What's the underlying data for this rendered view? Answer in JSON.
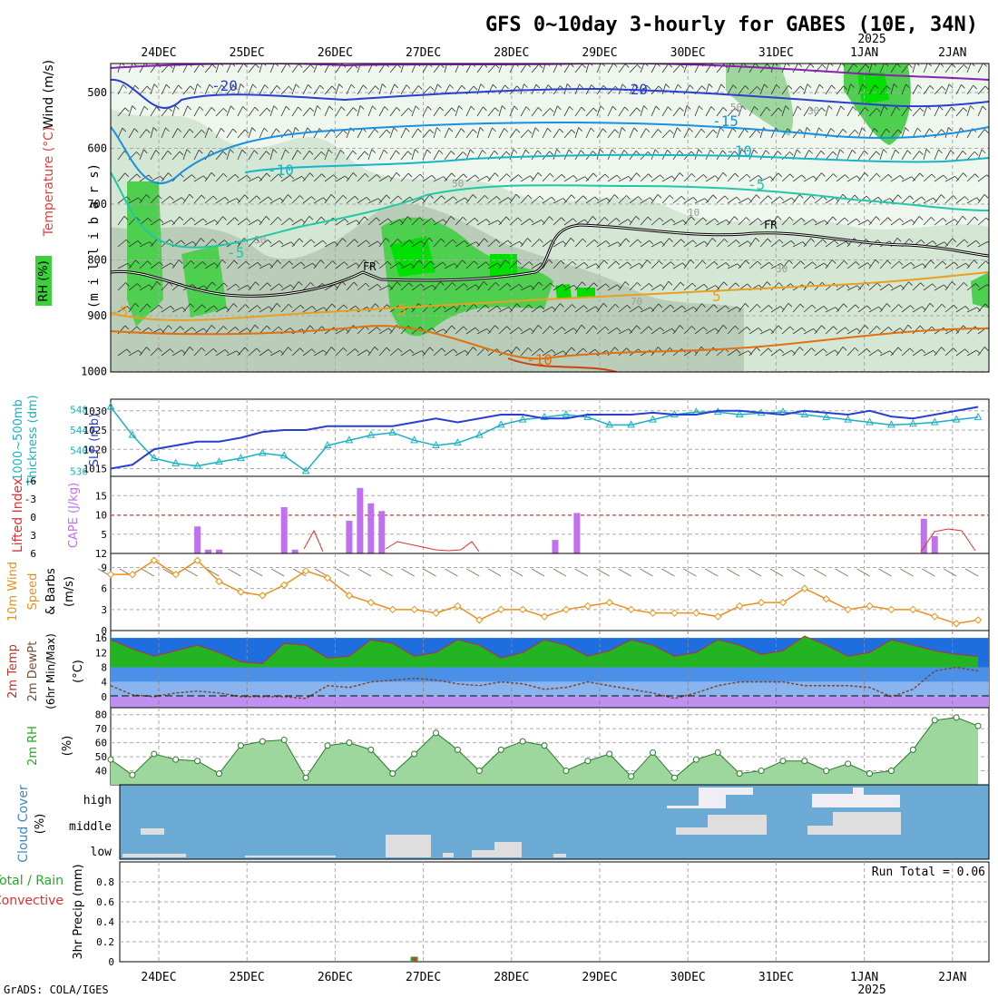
{
  "title": "GFS 0~10day 3-hourly for GABES (10E, 34N)",
  "year_label": "2025",
  "date_labels": [
    "24DEC",
    "25DEC",
    "26DEC",
    "27DEC",
    "28DEC",
    "29DEC",
    "30DEC",
    "31DEC",
    "1JAN",
    "2JAN"
  ],
  "credit": "GrADS: COLA/IGES",
  "panels": {
    "upper": {
      "y_label": "(m i l l i b a r s)",
      "legend_wind": "Wind (m/s)",
      "legend_temp": "Temperature (°C)",
      "legend_rh": "RH (%)",
      "pressure_ticks": [
        "500",
        "600",
        "700",
        "800",
        "900",
        "1000"
      ],
      "contour_labels": [
        "-20",
        "-20",
        "-15",
        "-10",
        "-10",
        "-5",
        "-5",
        "5",
        "5",
        "-5",
        "-10",
        "FR",
        "FR",
        "30",
        "30",
        "50",
        "10",
        "70",
        "30",
        "50"
      ]
    },
    "pressure": {
      "label_thk": "Thickness (dm)",
      "label_thk2": "1000~500mb",
      "label_slp": "SLP (mb)",
      "thk_ticks": [
        "548",
        "544",
        "540",
        "536"
      ],
      "slp_ticks": [
        "1030",
        "1025",
        "1020",
        "1015"
      ]
    },
    "cape": {
      "label_li": "Lifted Index",
      "label_cape": "CAPE (J/kg)",
      "li_ticks": [
        "-6",
        "-3",
        "0",
        "3",
        "6"
      ],
      "cape_ticks": [
        "15",
        "10",
        "5",
        "12"
      ]
    },
    "wind10": {
      "label1": "10m Wind",
      "label2": "Speed",
      "label3": "& Barbs",
      "label4": "(m/s)",
      "ticks": [
        "9",
        "6",
        "3",
        "0"
      ]
    },
    "temp2m": {
      "label1": "2m Temp",
      "label2": "2m DewPt",
      "label3": "(6hr Min/Max)",
      "label4": "(°C)",
      "ticks": [
        "16",
        "12",
        "8",
        "4",
        "0"
      ]
    },
    "rh2m": {
      "label1": "2m RH",
      "label2": "(%)",
      "ticks": [
        "80",
        "70",
        "60",
        "50",
        "40"
      ]
    },
    "cloud": {
      "label1": "Cloud Cover",
      "label2": "(%)",
      "ticks": [
        "high",
        "middle",
        "low"
      ]
    },
    "precip": {
      "label1": "Total / Rain",
      "label2": "Convective",
      "label3": "3hr Precip (mm)",
      "ticks": [
        "0.8",
        "0.6",
        "0.4",
        "0.2",
        "0"
      ],
      "run_total": "Run Total = 0.06"
    }
  },
  "colors": {
    "rh_green": "#3ccf3c",
    "temp_orange": "#e8901a",
    "thk_cyan": "#1ab0c0",
    "slp_blue": "#2a3fd0",
    "cape_purple": "#c070f0",
    "li_red": "#e03030",
    "cloud_bg": "#6aaad4",
    "grid": "#aaaaaa"
  },
  "chart_data": [
    {
      "type": "line",
      "name": "thickness",
      "x": [
        0,
        6,
        12,
        18,
        24,
        30,
        36,
        42,
        48,
        54,
        60,
        66,
        72,
        78,
        84,
        90,
        96,
        102,
        108,
        114,
        120,
        126,
        132,
        138,
        144,
        150,
        156,
        162,
        168,
        174,
        180,
        186,
        192,
        198,
        204,
        210,
        216,
        222,
        228,
        234,
        240
      ],
      "series": [
        {
          "name": "Thickness (dm)",
          "values": [
            548.5,
            543,
            538.5,
            537.5,
            537,
            537.8,
            538.5,
            539.5,
            539,
            536,
            541,
            542,
            543,
            543.5,
            542,
            541,
            541.5,
            543,
            545,
            546,
            546.5,
            547,
            546.5,
            545,
            545,
            546,
            547,
            547.5,
            547.5,
            547,
            547.3,
            547.5,
            547,
            546.5,
            546,
            545.5,
            545,
            545.2,
            545.5,
            546,
            546.5
          ]
        },
        {
          "name": "SLP (mb)",
          "values": [
            1015,
            1016,
            1020,
            1021,
            1022,
            1022,
            1023,
            1024.5,
            1025,
            1025,
            1026,
            1026,
            1026,
            1026,
            1027,
            1028,
            1027,
            1028,
            1029,
            1029,
            1028,
            1028,
            1029,
            1029,
            1029,
            1029.5,
            1029,
            1029,
            1030,
            1030,
            1029.5,
            1029,
            1030,
            1029.5,
            1029,
            1030,
            1028.5,
            1028,
            1029,
            1030,
            1031
          ]
        }
      ],
      "ylim_thk": [
        535,
        550
      ],
      "ylim_slp": [
        1013,
        1033
      ]
    },
    {
      "type": "bar",
      "name": "cape",
      "x": [
        24,
        27,
        30,
        48,
        51,
        66,
        69,
        72,
        75,
        123,
        129,
        225,
        228
      ],
      "values": [
        7,
        1,
        1,
        12,
        1,
        8.5,
        17,
        13,
        11,
        3.5,
        10.5,
        9,
        4.5
      ],
      "ylim": [
        0,
        20
      ]
    },
    {
      "type": "line",
      "name": "wind10",
      "x": [
        0,
        6,
        12,
        18,
        24,
        30,
        36,
        42,
        48,
        54,
        60,
        66,
        72,
        78,
        84,
        90,
        96,
        102,
        108,
        114,
        120,
        126,
        132,
        138,
        144,
        150,
        156,
        162,
        168,
        174,
        180,
        186,
        192,
        198,
        204,
        210,
        216,
        222,
        228,
        234,
        240
      ],
      "values": [
        8,
        8,
        10,
        8,
        10,
        7,
        5.5,
        5,
        6.5,
        8.5,
        7.5,
        5,
        4,
        3,
        3,
        2.5,
        3.5,
        1.5,
        3,
        3,
        2,
        3,
        3.5,
        4,
        3,
        2.5,
        2.5,
        2.5,
        2,
        3.5,
        4,
        4,
        6,
        4.5,
        3,
        3.5,
        3,
        3,
        2,
        1,
        1.5
      ],
      "ylim": [
        0,
        11
      ]
    },
    {
      "type": "area",
      "name": "temp2m",
      "x": [
        0,
        6,
        12,
        18,
        24,
        30,
        36,
        42,
        48,
        54,
        60,
        66,
        72,
        78,
        84,
        90,
        96,
        102,
        108,
        114,
        120,
        126,
        132,
        138,
        144,
        150,
        156,
        162,
        168,
        174,
        180,
        186,
        192,
        198,
        204,
        210,
        216,
        222,
        228,
        234,
        240
      ],
      "series": [
        {
          "name": "2m Temp",
          "values": [
            15.5,
            13,
            11,
            12.5,
            14,
            12,
            9.5,
            9,
            14.5,
            14,
            10.5,
            11,
            15.5,
            14.5,
            11,
            12,
            15.5,
            14,
            10.5,
            12,
            15.5,
            14,
            11,
            12.5,
            15.5,
            14,
            11,
            12,
            15.5,
            14,
            11.5,
            12.5,
            16.5,
            14,
            11,
            12,
            15.5,
            14,
            12.5,
            11.5,
            11
          ]
        },
        {
          "name": "2m DewPt",
          "values": [
            3,
            0.5,
            0,
            1,
            1.5,
            1,
            0,
            0,
            0,
            -0.5,
            3,
            2.5,
            4,
            4.5,
            5,
            4.5,
            3.5,
            3,
            4,
            3.5,
            2,
            2.5,
            4,
            3,
            2,
            1,
            -0.5,
            1,
            3,
            4,
            4,
            4,
            3,
            3,
            3,
            2.5,
            0,
            2,
            7,
            8,
            7
          ]
        }
      ],
      "ylim": [
        -3,
        18
      ]
    },
    {
      "type": "area",
      "name": "rh2m",
      "x": [
        0,
        6,
        12,
        18,
        24,
        30,
        36,
        42,
        48,
        54,
        60,
        66,
        72,
        78,
        84,
        90,
        96,
        102,
        108,
        114,
        120,
        126,
        132,
        138,
        144,
        150,
        156,
        162,
        168,
        174,
        180,
        186,
        192,
        198,
        204,
        210,
        216,
        222,
        228,
        234,
        240
      ],
      "values": [
        48,
        37,
        52,
        48,
        47,
        38,
        58,
        61,
        62,
        35,
        58,
        60,
        55,
        38,
        52,
        67,
        55,
        40,
        55,
        61,
        58,
        40,
        47,
        52,
        36,
        53,
        35,
        48,
        53,
        38,
        40,
        47,
        47,
        40,
        45,
        38,
        40,
        55,
        76,
        78,
        72
      ],
      "ylim": [
        30,
        85
      ]
    },
    {
      "type": "bar",
      "name": "precip",
      "x": [
        84
      ],
      "values": [
        0.05
      ],
      "ylim": [
        0,
        1
      ]
    }
  ]
}
